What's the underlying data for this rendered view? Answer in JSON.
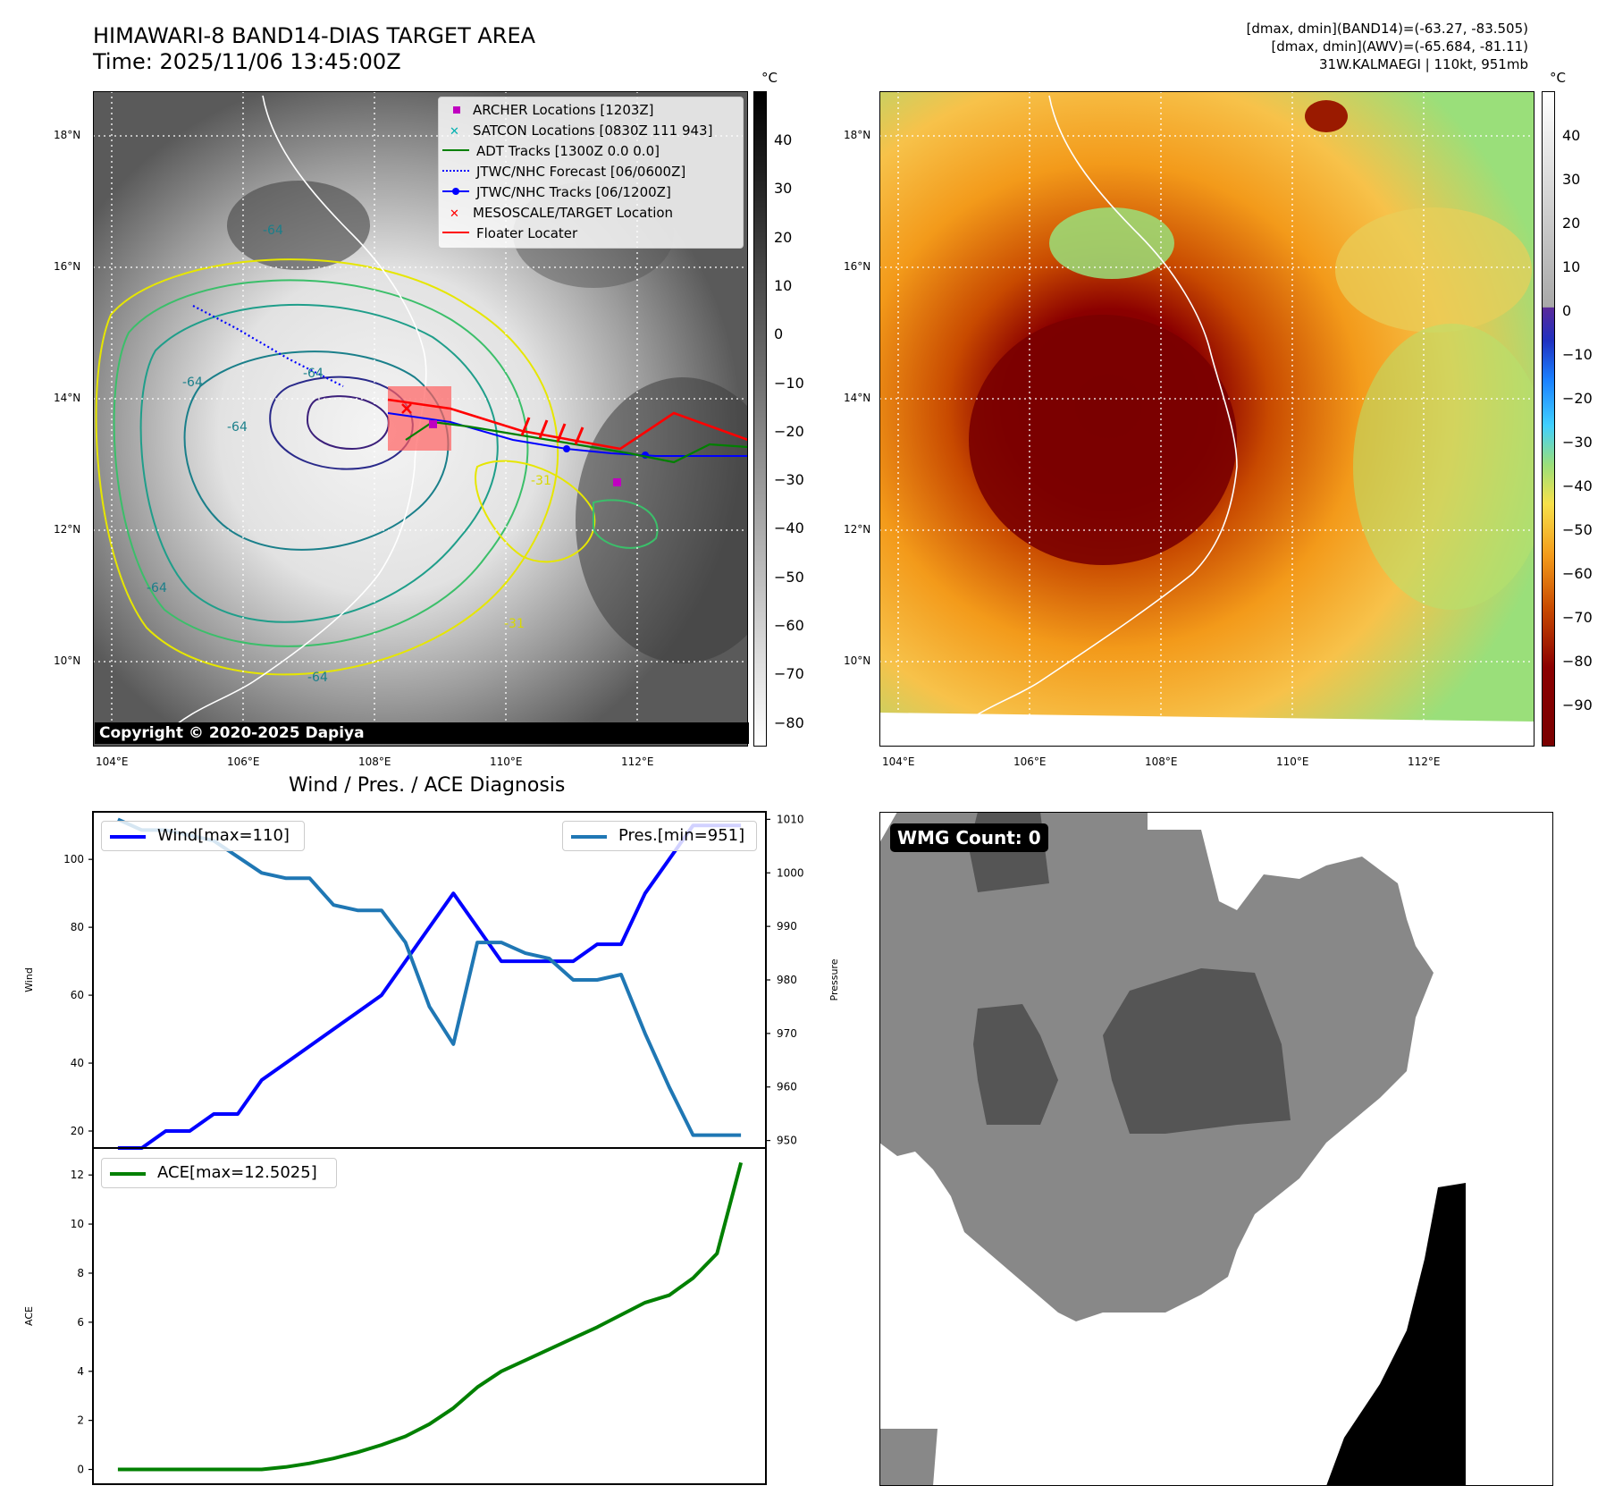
{
  "header": {
    "title_line1": "HIMAWARI-8 BAND14-DIAS TARGET AREA",
    "title_line2": "Time: 2025/11/06 13:45:00Z",
    "stats_line1": "[dmax, dmin](BAND14)=(-63.27, -83.505)",
    "stats_line2": "[dmax, dmin](AWV)=(-65.684, -81.11)",
    "stats_line3": "31W.KALMAEGI | 110kt, 951mb"
  },
  "maps": {
    "lat_labels": [
      "18°N",
      "16°N",
      "14°N",
      "12°N",
      "10°N"
    ],
    "lon_labels": [
      "104°E",
      "106°E",
      "108°E",
      "110°E",
      "112°E"
    ],
    "copyright": "Copyright © 2020-2025 Dapiya",
    "contour_labels": [
      "-64",
      "-64",
      "-64",
      "-64",
      "-64",
      "-64",
      "-31",
      "-31"
    ],
    "legend": [
      {
        "label": "ARCHER Locations [1203Z]",
        "marker": "square",
        "color": "#c000c0"
      },
      {
        "label": "SATCON Locations [0830Z 111 943]",
        "marker": "x",
        "color": "#00b0b0"
      },
      {
        "label": "ADT Tracks [1300Z 0.0 0.0]",
        "marker": "line",
        "color": "#008000"
      },
      {
        "label": "JTWC/NHC Forecast [06/0600Z]",
        "marker": "dotted",
        "color": "#0000ff"
      },
      {
        "label": "JTWC/NHC Tracks [06/1200Z]",
        "marker": "line-dot",
        "color": "#0000ff"
      },
      {
        "label": "MESOSCALE/TARGET Location",
        "marker": "x",
        "color": "#ff0000"
      },
      {
        "label": "Floater Locater",
        "marker": "line",
        "color": "#ff0000"
      }
    ],
    "left_colorbar": {
      "unit": "°C",
      "ticks": [
        "40",
        "30",
        "20",
        "10",
        "0",
        "−10",
        "−20",
        "−30",
        "−40",
        "−50",
        "−60",
        "−70",
        "−80"
      ]
    },
    "right_colorbar": {
      "unit": "°C",
      "ticks": [
        "40",
        "30",
        "20",
        "10",
        "0",
        "−10",
        "−20",
        "−30",
        "−40",
        "−50",
        "−60",
        "−70",
        "−80",
        "−90"
      ]
    }
  },
  "chart_data": [
    {
      "type": "line",
      "title": "Wind / Pres. / ACE Diagnosis",
      "ylabel": "Wind",
      "y2label": "Pressure",
      "ylim": [
        15,
        114
      ],
      "y2lim": [
        948.6,
        1011.4
      ],
      "yticks": [
        20,
        40,
        60,
        80,
        100
      ],
      "y2ticks": [
        950,
        960,
        970,
        980,
        990,
        1000,
        1010
      ],
      "x": [
        0,
        1,
        2,
        3,
        4,
        5,
        6,
        7,
        8,
        9,
        10,
        11,
        12,
        13,
        14,
        15,
        16,
        17,
        18,
        19,
        20,
        21,
        22,
        23,
        24,
        25,
        26
      ],
      "series": [
        {
          "name": "Wind[max=110]",
          "axis": "left",
          "color": "#0000ff",
          "values": [
            15,
            15,
            20,
            20,
            25,
            25,
            35,
            40,
            45,
            50,
            55,
            60,
            70,
            80,
            90,
            80,
            70,
            70,
            70,
            70,
            75,
            75,
            90,
            100,
            110,
            110,
            110
          ]
        },
        {
          "name": "Pres.[min=951]",
          "axis": "right",
          "color": "#1f77b4",
          "values": [
            1010,
            1008,
            1008,
            1007,
            1006,
            1003,
            1000,
            999,
            999,
            994,
            993,
            993,
            987,
            975,
            968,
            987,
            987,
            985,
            984,
            980,
            980,
            981,
            970,
            960,
            951,
            951,
            951
          ]
        }
      ],
      "legend": [
        "top-left",
        "top-right"
      ]
    },
    {
      "type": "line",
      "ylabel": "ACE",
      "ylim": [
        -0.6,
        13.1
      ],
      "yticks": [
        0,
        2,
        4,
        6,
        8,
        10,
        12
      ],
      "x": [
        0,
        1,
        2,
        3,
        4,
        5,
        6,
        7,
        8,
        9,
        10,
        11,
        12,
        13,
        14,
        15,
        16,
        17,
        18,
        19,
        20,
        21,
        22,
        23,
        24,
        25,
        26
      ],
      "series": [
        {
          "name": "ACE[max=12.5025]",
          "color": "#008000",
          "values": [
            0,
            0,
            0,
            0,
            0,
            0,
            0,
            0.1,
            0.25,
            0.45,
            0.7,
            1.0,
            1.35,
            1.85,
            2.5,
            3.35,
            4.0,
            4.45,
            4.9,
            5.35,
            5.8,
            6.3,
            6.8,
            7.1,
            7.8,
            8.8,
            12.5025
          ]
        }
      ],
      "legend": "top-left"
    }
  ],
  "wmg": {
    "label": "WMG Count: 0"
  }
}
